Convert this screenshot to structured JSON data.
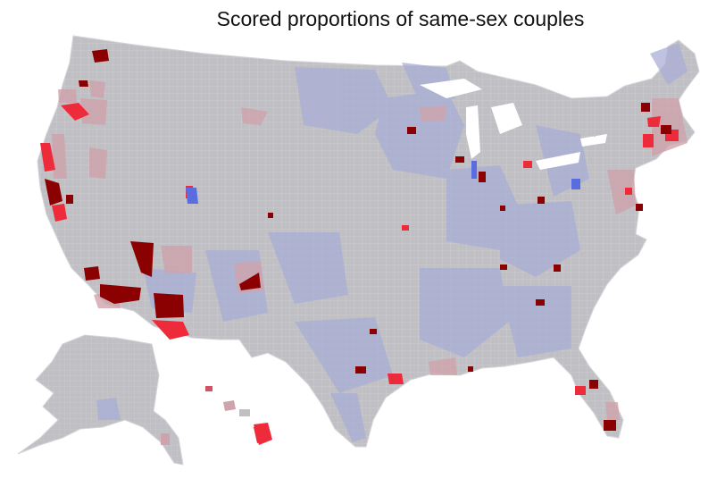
{
  "map": {
    "title": "Scored proportions of same-sex couples",
    "palette": {
      "base": "#bfbfc4",
      "low_blue": "#a9aed6",
      "low_blue_strong": "#5a6de0",
      "mid_pink": "#cfa3ab",
      "high_red": "#ee2b3b",
      "very_high": "#8b0000",
      "border": "#ffffff"
    }
  }
}
